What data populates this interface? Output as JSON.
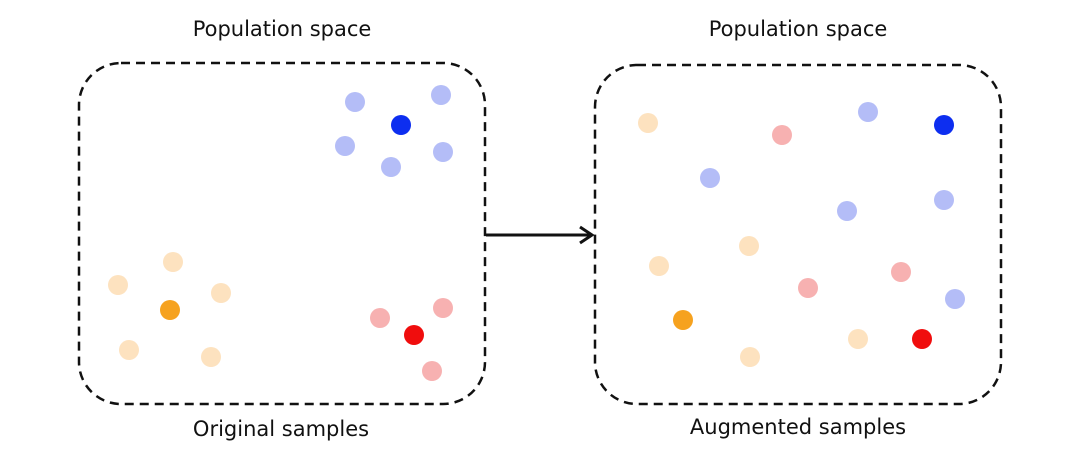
{
  "left_panel": {
    "title": "Population space",
    "caption": "Original samples"
  },
  "right_panel": {
    "title": "Population space",
    "caption": "Augmented samples"
  },
  "colors": {
    "blue_dark": "#0d2ef0",
    "blue_light": "#b4bdf7",
    "red_dark": "#f00d0d",
    "red_light": "#f7b1b1",
    "orange_dark": "#f6a21f",
    "orange_light": "#fde2bf",
    "outline": "#111111"
  }
}
